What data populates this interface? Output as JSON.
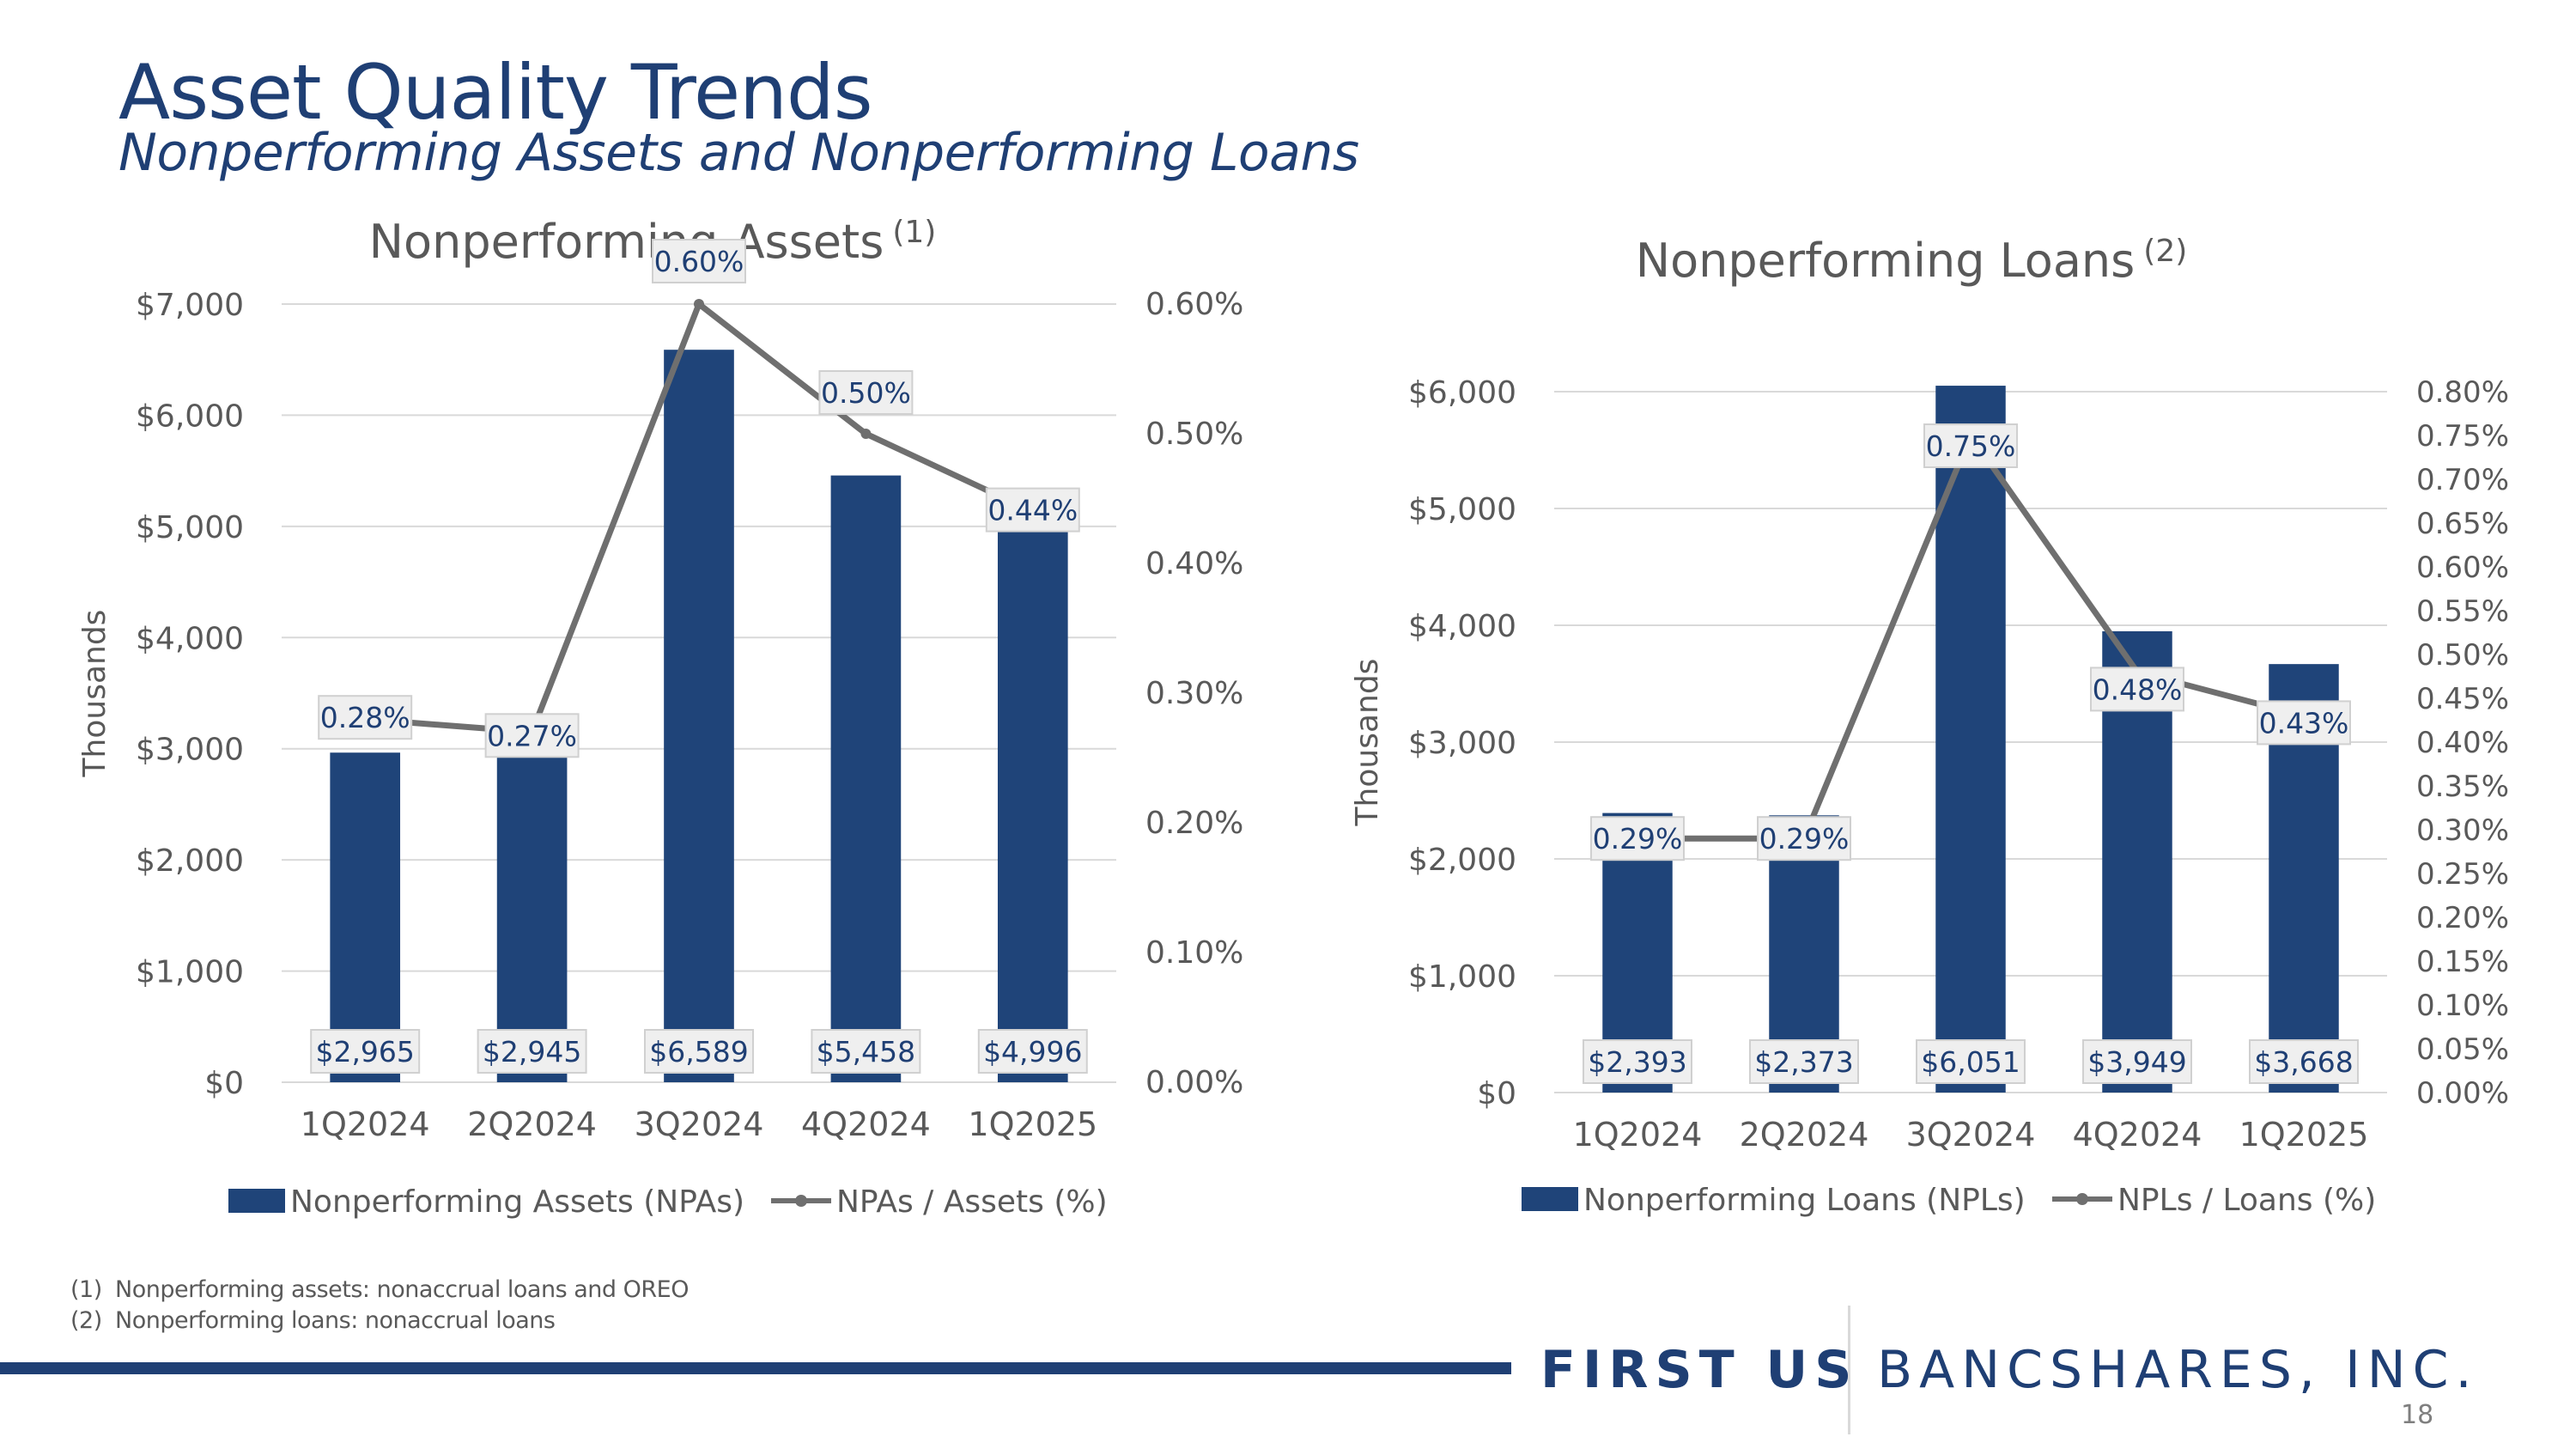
{
  "page": {
    "title": "Asset Quality Trends",
    "subtitle": "Nonperforming Assets and Nonperforming Loans",
    "footnotes": [
      {
        "num": "(1)",
        "text": "Nonperforming assets: nonaccrual loans and OREO"
      },
      {
        "num": "(2)",
        "text": "Nonperforming loans: nonaccrual loans"
      }
    ],
    "logo": {
      "left": "FIRST US",
      "right": "BANCSHARES, INC."
    },
    "page_number": "18"
  },
  "colors": {
    "bar": "#1f4479",
    "line": "#6f6f6f",
    "title": "#1f3f74",
    "grid": "#d9d9d9",
    "text": "#595959"
  },
  "chart_data": [
    {
      "type": "bar",
      "title": "Nonperforming Assets",
      "title_sup": "(1)",
      "categories": [
        "1Q2024",
        "2Q2024",
        "3Q2024",
        "4Q2024",
        "1Q2025"
      ],
      "ylabel": "Thousands",
      "ylim": [
        0,
        7000
      ],
      "yticks": [
        "$0",
        "$1,000",
        "$2,000",
        "$3,000",
        "$4,000",
        "$5,000",
        "$6,000",
        "$7,000"
      ],
      "y2lim": [
        0,
        0.6
      ],
      "y2ticks": [
        "0.00%",
        "0.10%",
        "0.20%",
        "0.30%",
        "0.40%",
        "0.50%",
        "0.60%"
      ],
      "series": [
        {
          "name": "Nonperforming Assets (NPAs)",
          "type": "bar",
          "values": [
            2965,
            2945,
            6589,
            5458,
            4996
          ],
          "labels": [
            "$2,965",
            "$2,945",
            "$6,589",
            "$5,458",
            "$4,996"
          ]
        },
        {
          "name": "NPAs / Assets (%)",
          "type": "line",
          "axis": "right",
          "values": [
            0.28,
            0.27,
            0.6,
            0.5,
            0.44
          ],
          "labels": [
            "0.28%",
            "0.27%",
            "0.60%",
            "0.50%",
            "0.44%"
          ]
        }
      ],
      "legend": "bottom"
    },
    {
      "type": "bar",
      "title": "Nonperforming Loans",
      "title_sup": "(2)",
      "categories": [
        "1Q2024",
        "2Q2024",
        "3Q2024",
        "4Q2024",
        "1Q2025"
      ],
      "ylabel": "Thousands",
      "ylim": [
        0,
        6000
      ],
      "yticks": [
        "$0",
        "$1,000",
        "$2,000",
        "$3,000",
        "$4,000",
        "$5,000",
        "$6,000"
      ],
      "y2lim": [
        0,
        0.8
      ],
      "y2ticks": [
        "0.00%",
        "0.05%",
        "0.10%",
        "0.15%",
        "0.20%",
        "0.25%",
        "0.30%",
        "0.35%",
        "0.40%",
        "0.45%",
        "0.50%",
        "0.55%",
        "0.60%",
        "0.65%",
        "0.70%",
        "0.75%",
        "0.80%"
      ],
      "series": [
        {
          "name": "Nonperforming Loans (NPLs)",
          "type": "bar",
          "values": [
            2393,
            2373,
            6051,
            3949,
            3668
          ],
          "labels": [
            "$2,393",
            "$2,373",
            "$6,051",
            "$3,949",
            "$3,668"
          ]
        },
        {
          "name": "NPLs / Loans (%)",
          "type": "line",
          "axis": "right",
          "values": [
            0.29,
            0.29,
            0.75,
            0.48,
            0.43
          ],
          "labels": [
            "0.29%",
            "0.29%",
            "0.75%",
            "0.48%",
            "0.43%"
          ]
        }
      ],
      "legend": "bottom"
    }
  ]
}
